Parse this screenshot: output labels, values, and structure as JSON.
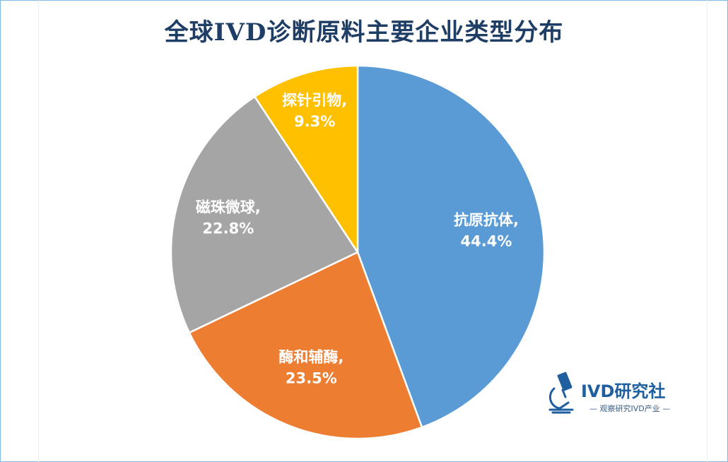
{
  "chart_data": {
    "type": "pie",
    "title": "全球IVD诊断原料主要企业类型分布",
    "start_angle": "top",
    "direction": "clockwise",
    "slices": [
      {
        "name": "抗原抗体",
        "value": 44.4,
        "label": "抗原抗体,",
        "value_label": "44.4%",
        "color": "#5b9bd5"
      },
      {
        "name": "酶和辅酶",
        "value": 23.5,
        "label": "酶和辅酶,",
        "value_label": "23.5%",
        "color": "#ed7d31"
      },
      {
        "name": "磁珠微球",
        "value": 22.8,
        "label": "磁珠微球,",
        "value_label": "22.8%",
        "color": "#a5a5a5"
      },
      {
        "name": "探针引物",
        "value": 9.3,
        "label": "探针引物,",
        "value_label": "9.3%",
        "color": "#ffc000"
      }
    ],
    "legend": "none"
  },
  "logo": {
    "name": "IVD研究社",
    "tagline": "— 观察研究IVD产业 —",
    "icon": "microscope-icon",
    "color": "#1f5fa0"
  }
}
